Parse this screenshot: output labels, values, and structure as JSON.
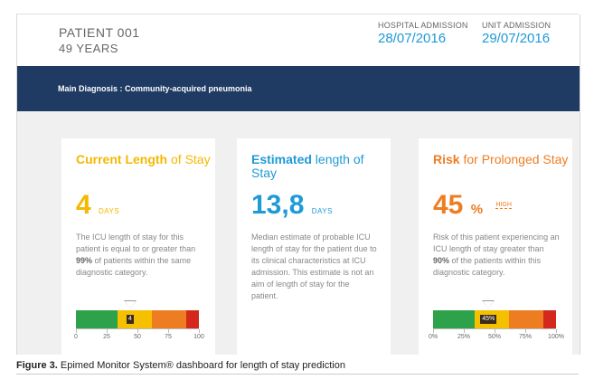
{
  "patient": {
    "id": "PATIENT 001",
    "age": "49 YEARS"
  },
  "admissions": [
    {
      "label": "HOSPITAL ADMISSION",
      "date": "28/07/2016"
    },
    {
      "label": "UNIT ADMISSION",
      "date": "29/07/2016"
    }
  ],
  "banner": {
    "text": "Main Diagnosis : Community-acquired pneumonia"
  },
  "cards": [
    {
      "title_strong": "Current Length",
      "title_rest": " of Stay",
      "value": "4",
      "unit": "DAYS",
      "desc_parts": [
        "The ICU length of stay for this patient is equal to or greater than ",
        "99%",
        " of patients within the same diagnostic category."
      ],
      "gauge": {
        "marker_value": 4,
        "marker_label": "4",
        "min": 0,
        "max": 100,
        "ticks": [
          "0",
          "25",
          "50",
          "75",
          "100"
        ]
      },
      "colors": {
        "title": "#f5b800",
        "value": "#f5b800"
      }
    },
    {
      "title_strong": "Estimated",
      "title_rest": " length of Stay",
      "value": "13,8",
      "unit": "DAYS",
      "desc": "Median estimate of probable ICU length of stay for the patient due to its clinical characteristics at ICU admission. This estimate is not an aim of length of stay for the patient.",
      "colors": {
        "title": "#1e9ad6",
        "value": "#1e9ad6"
      }
    },
    {
      "title_strong": "Risk",
      "title_rest": " for Prolonged Stay",
      "value": "45",
      "unit": "%",
      "badge": "HIGH",
      "desc_parts": [
        "Risk of this patient experiencing an ICU length of stay greater than ",
        "90%",
        " of the patients within this diagnostic category."
      ],
      "gauge": {
        "marker_value": 45,
        "marker_label": "45%",
        "min": 0,
        "max": 100,
        "ticks": [
          "0%",
          "25%",
          "50%",
          "75%",
          "100%"
        ]
      },
      "colors": {
        "title": "#ee7d22",
        "value": "#ee7d22"
      }
    }
  ],
  "gauge_colors": [
    "#2ea24a",
    "#f5c000",
    "#ee7d22",
    "#d4281c"
  ],
  "caption": {
    "label": "Figure 3.",
    "text": " Epimed Monitor System® dashboard for length of stay prediction"
  }
}
